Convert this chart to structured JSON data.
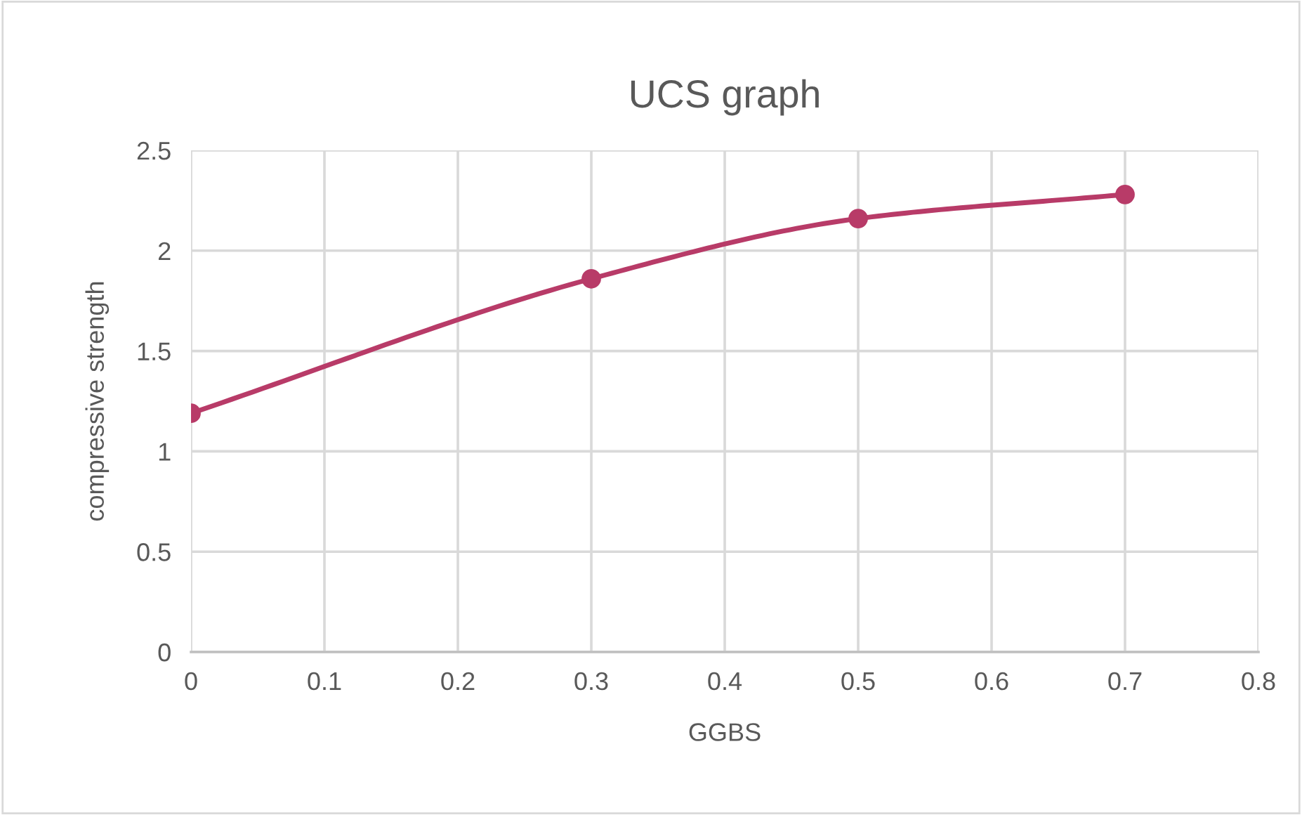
{
  "chart_data": {
    "type": "line",
    "title": "UCS graph",
    "xlabel": "GGBS",
    "ylabel": "compressive strength",
    "x": [
      0,
      0.3,
      0.5,
      0.7
    ],
    "series": [
      {
        "color": "#b83b68",
        "values": [
          1.19,
          1.86,
          2.16,
          2.28
        ]
      }
    ],
    "xlim": [
      0,
      0.8
    ],
    "xticks": [
      0,
      0.1,
      0.2,
      0.3,
      0.4,
      0.5,
      0.6,
      0.7,
      0.8
    ],
    "ylim": [
      0,
      2.5
    ],
    "yticks": [
      0,
      0.5,
      1,
      1.5,
      2,
      2.5
    ],
    "grid": true,
    "marker": "circle",
    "line_style": "solid",
    "legend": false
  }
}
